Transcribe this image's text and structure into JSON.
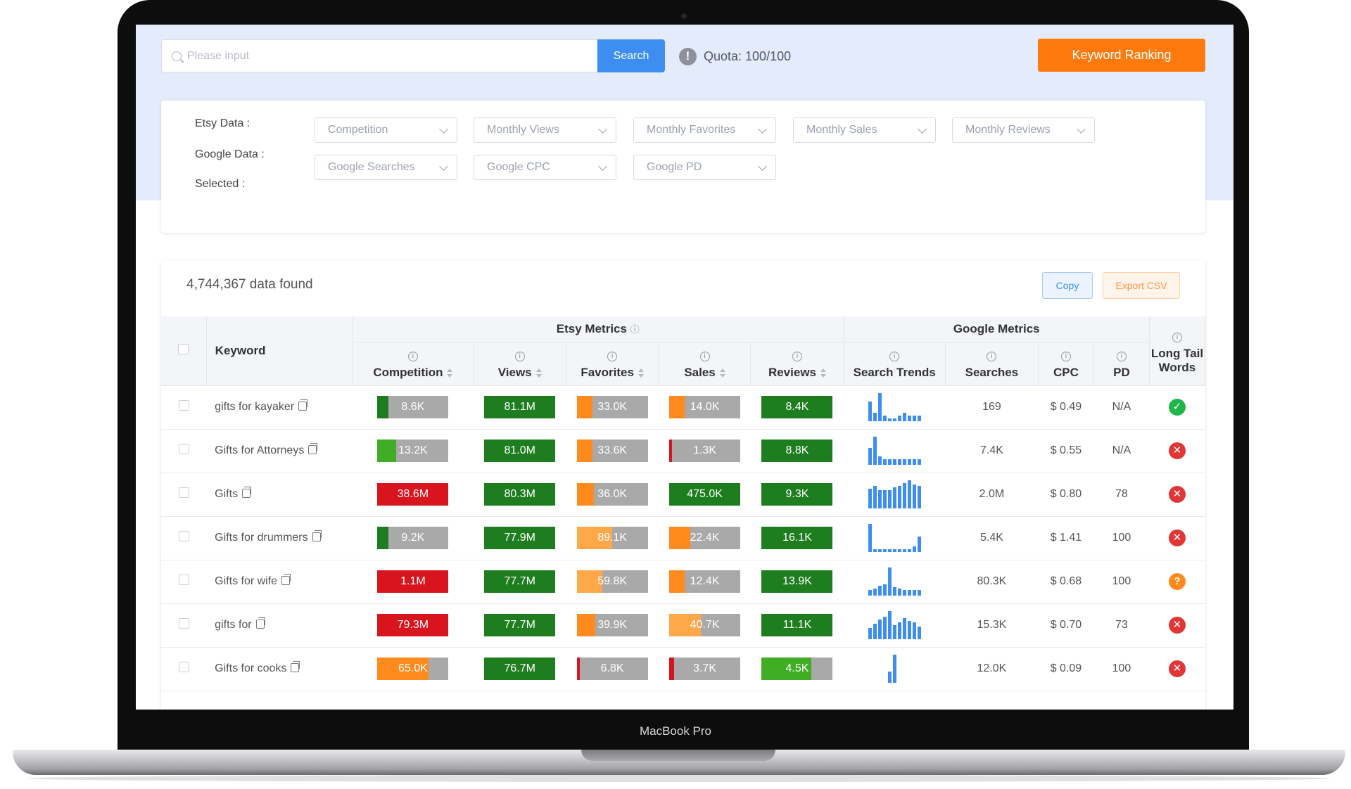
{
  "device_label": "MacBook Pro",
  "search": {
    "placeholder": "Please input",
    "button": "Search"
  },
  "quota": {
    "icon": "info-icon",
    "text": "Quota: 100/100"
  },
  "keyword_ranking_button": "Keyword Ranking",
  "filters": {
    "etsy_label": "Etsy Data :",
    "google_label": "Google Data :",
    "selected_label": "Selected :",
    "etsy": [
      "Competition",
      "Monthly Views",
      "Monthly Favorites",
      "Monthly Sales",
      "Monthly Reviews"
    ],
    "google": [
      "Google Searches",
      "Google CPC",
      "Google PD"
    ]
  },
  "results": {
    "count_text": "4,744,367 data found",
    "copy_button": "Copy",
    "export_button": "Export CSV"
  },
  "table": {
    "group_etsy": "Etsy Metrics",
    "group_google": "Google Metrics",
    "headers": {
      "keyword": "Keyword",
      "competition": "Competition",
      "views": "Views",
      "favorites": "Favorites",
      "sales": "Sales",
      "reviews": "Reviews",
      "trends": "Search Trends",
      "searches": "Searches",
      "cpc": "CPC",
      "pd": "PD",
      "longtail": "Long Tail Words"
    },
    "colors": {
      "dark_green": "#1e7d1e",
      "light_green": "#3fae25",
      "red": "#d8141f",
      "orange": "#ff8a1d",
      "light_orange": "#ffa84a",
      "gray": "#a9a9a9"
    },
    "rows": [
      {
        "keyword": "gifts for kayaker",
        "competition": {
          "value": "8.6K",
          "color": "dark_green",
          "fill": 0.15
        },
        "views": {
          "value": "81.1M",
          "color": "dark_green",
          "fill": 1
        },
        "favorites": {
          "value": "33.0K",
          "color": "orange",
          "fill": 0.22
        },
        "sales": {
          "value": "14.0K",
          "color": "orange",
          "fill": 0.22
        },
        "reviews": {
          "value": "8.4K",
          "color": "dark_green",
          "fill": 1
        },
        "trend": [
          70,
          30,
          100,
          20,
          10,
          10,
          20,
          30,
          20,
          20,
          20
        ],
        "searches": "169",
        "cpc": "$ 0.49",
        "pd": "N/A",
        "longtail": "ok"
      },
      {
        "keyword": "Gifts for Attorneys",
        "competition": {
          "value": "13.2K",
          "color": "light_green",
          "fill": 0.26
        },
        "views": {
          "value": "81.0M",
          "color": "dark_green",
          "fill": 1
        },
        "favorites": {
          "value": "33.6K",
          "color": "orange",
          "fill": 0.22
        },
        "sales": {
          "value": "1.3K",
          "color": "red",
          "fill": 0.04
        },
        "reviews": {
          "value": "8.8K",
          "color": "dark_green",
          "fill": 1
        },
        "trend": [
          60,
          100,
          30,
          20,
          20,
          20,
          20,
          20,
          20,
          20,
          20
        ],
        "searches": "7.4K",
        "cpc": "$ 0.55",
        "pd": "N/A",
        "longtail": "no"
      },
      {
        "keyword": "Gifts",
        "competition": {
          "value": "38.6M",
          "color": "red",
          "fill": 1
        },
        "views": {
          "value": "80.3M",
          "color": "dark_green",
          "fill": 1
        },
        "favorites": {
          "value": "36.0K",
          "color": "orange",
          "fill": 0.24
        },
        "sales": {
          "value": "475.0K",
          "color": "dark_green",
          "fill": 1
        },
        "reviews": {
          "value": "9.3K",
          "color": "dark_green",
          "fill": 1
        },
        "trend": [
          70,
          80,
          65,
          65,
          65,
          75,
          80,
          90,
          100,
          85,
          80
        ],
        "searches": "2.0M",
        "cpc": "$ 0.80",
        "pd": "78",
        "longtail": "no"
      },
      {
        "keyword": "Gifts for drummers",
        "competition": {
          "value": "9.2K",
          "color": "dark_green",
          "fill": 0.15
        },
        "views": {
          "value": "77.9M",
          "color": "dark_green",
          "fill": 1
        },
        "favorites": {
          "value": "89.1K",
          "color": "light_orange",
          "fill": 0.5
        },
        "sales": {
          "value": "22.4K",
          "color": "orange",
          "fill": 0.3
        },
        "reviews": {
          "value": "16.1K",
          "color": "dark_green",
          "fill": 1
        },
        "trend": [
          100,
          10,
          10,
          10,
          10,
          10,
          10,
          10,
          10,
          20,
          55
        ],
        "searches": "5.4K",
        "cpc": "$ 1.41",
        "pd": "100",
        "longtail": "no"
      },
      {
        "keyword": "Gifts for wife",
        "competition": {
          "value": "1.1M",
          "color": "red",
          "fill": 1
        },
        "views": {
          "value": "77.7M",
          "color": "dark_green",
          "fill": 1
        },
        "favorites": {
          "value": "59.8K",
          "color": "light_orange",
          "fill": 0.36
        },
        "sales": {
          "value": "12.4K",
          "color": "orange",
          "fill": 0.22
        },
        "reviews": {
          "value": "13.9K",
          "color": "dark_green",
          "fill": 1
        },
        "trend": [
          20,
          25,
          35,
          40,
          100,
          30,
          25,
          20,
          20,
          20,
          20
        ],
        "searches": "80.3K",
        "cpc": "$ 0.68",
        "pd": "100",
        "longtail": "q"
      },
      {
        "keyword": "gifts for",
        "competition": {
          "value": "79.3M",
          "color": "red",
          "fill": 1
        },
        "views": {
          "value": "77.7M",
          "color": "dark_green",
          "fill": 1
        },
        "favorites": {
          "value": "39.9K",
          "color": "orange",
          "fill": 0.26
        },
        "sales": {
          "value": "40.7K",
          "color": "light_orange",
          "fill": 0.45
        },
        "reviews": {
          "value": "11.1K",
          "color": "dark_green",
          "fill": 1
        },
        "trend": [
          40,
          55,
          70,
          80,
          100,
          50,
          60,
          75,
          65,
          60,
          45
        ],
        "searches": "15.3K",
        "cpc": "$ 0.70",
        "pd": "73",
        "longtail": "no"
      },
      {
        "keyword": "Gifts for cooks",
        "competition": {
          "value": "65.0K",
          "color": "orange",
          "fill": 0.72
        },
        "views": {
          "value": "76.7M",
          "color": "dark_green",
          "fill": 1
        },
        "favorites": {
          "value": "6.8K",
          "color": "red",
          "fill": 0.04
        },
        "sales": {
          "value": "3.7K",
          "color": "red",
          "fill": 0.07
        },
        "reviews": {
          "value": "4.5K",
          "color": "light_green",
          "fill": 0.7
        },
        "trend": [
          0,
          0,
          0,
          0,
          40,
          100,
          0,
          0,
          0,
          0,
          0
        ],
        "searches": "12.0K",
        "cpc": "$ 0.09",
        "pd": "100",
        "longtail": "no"
      }
    ]
  }
}
